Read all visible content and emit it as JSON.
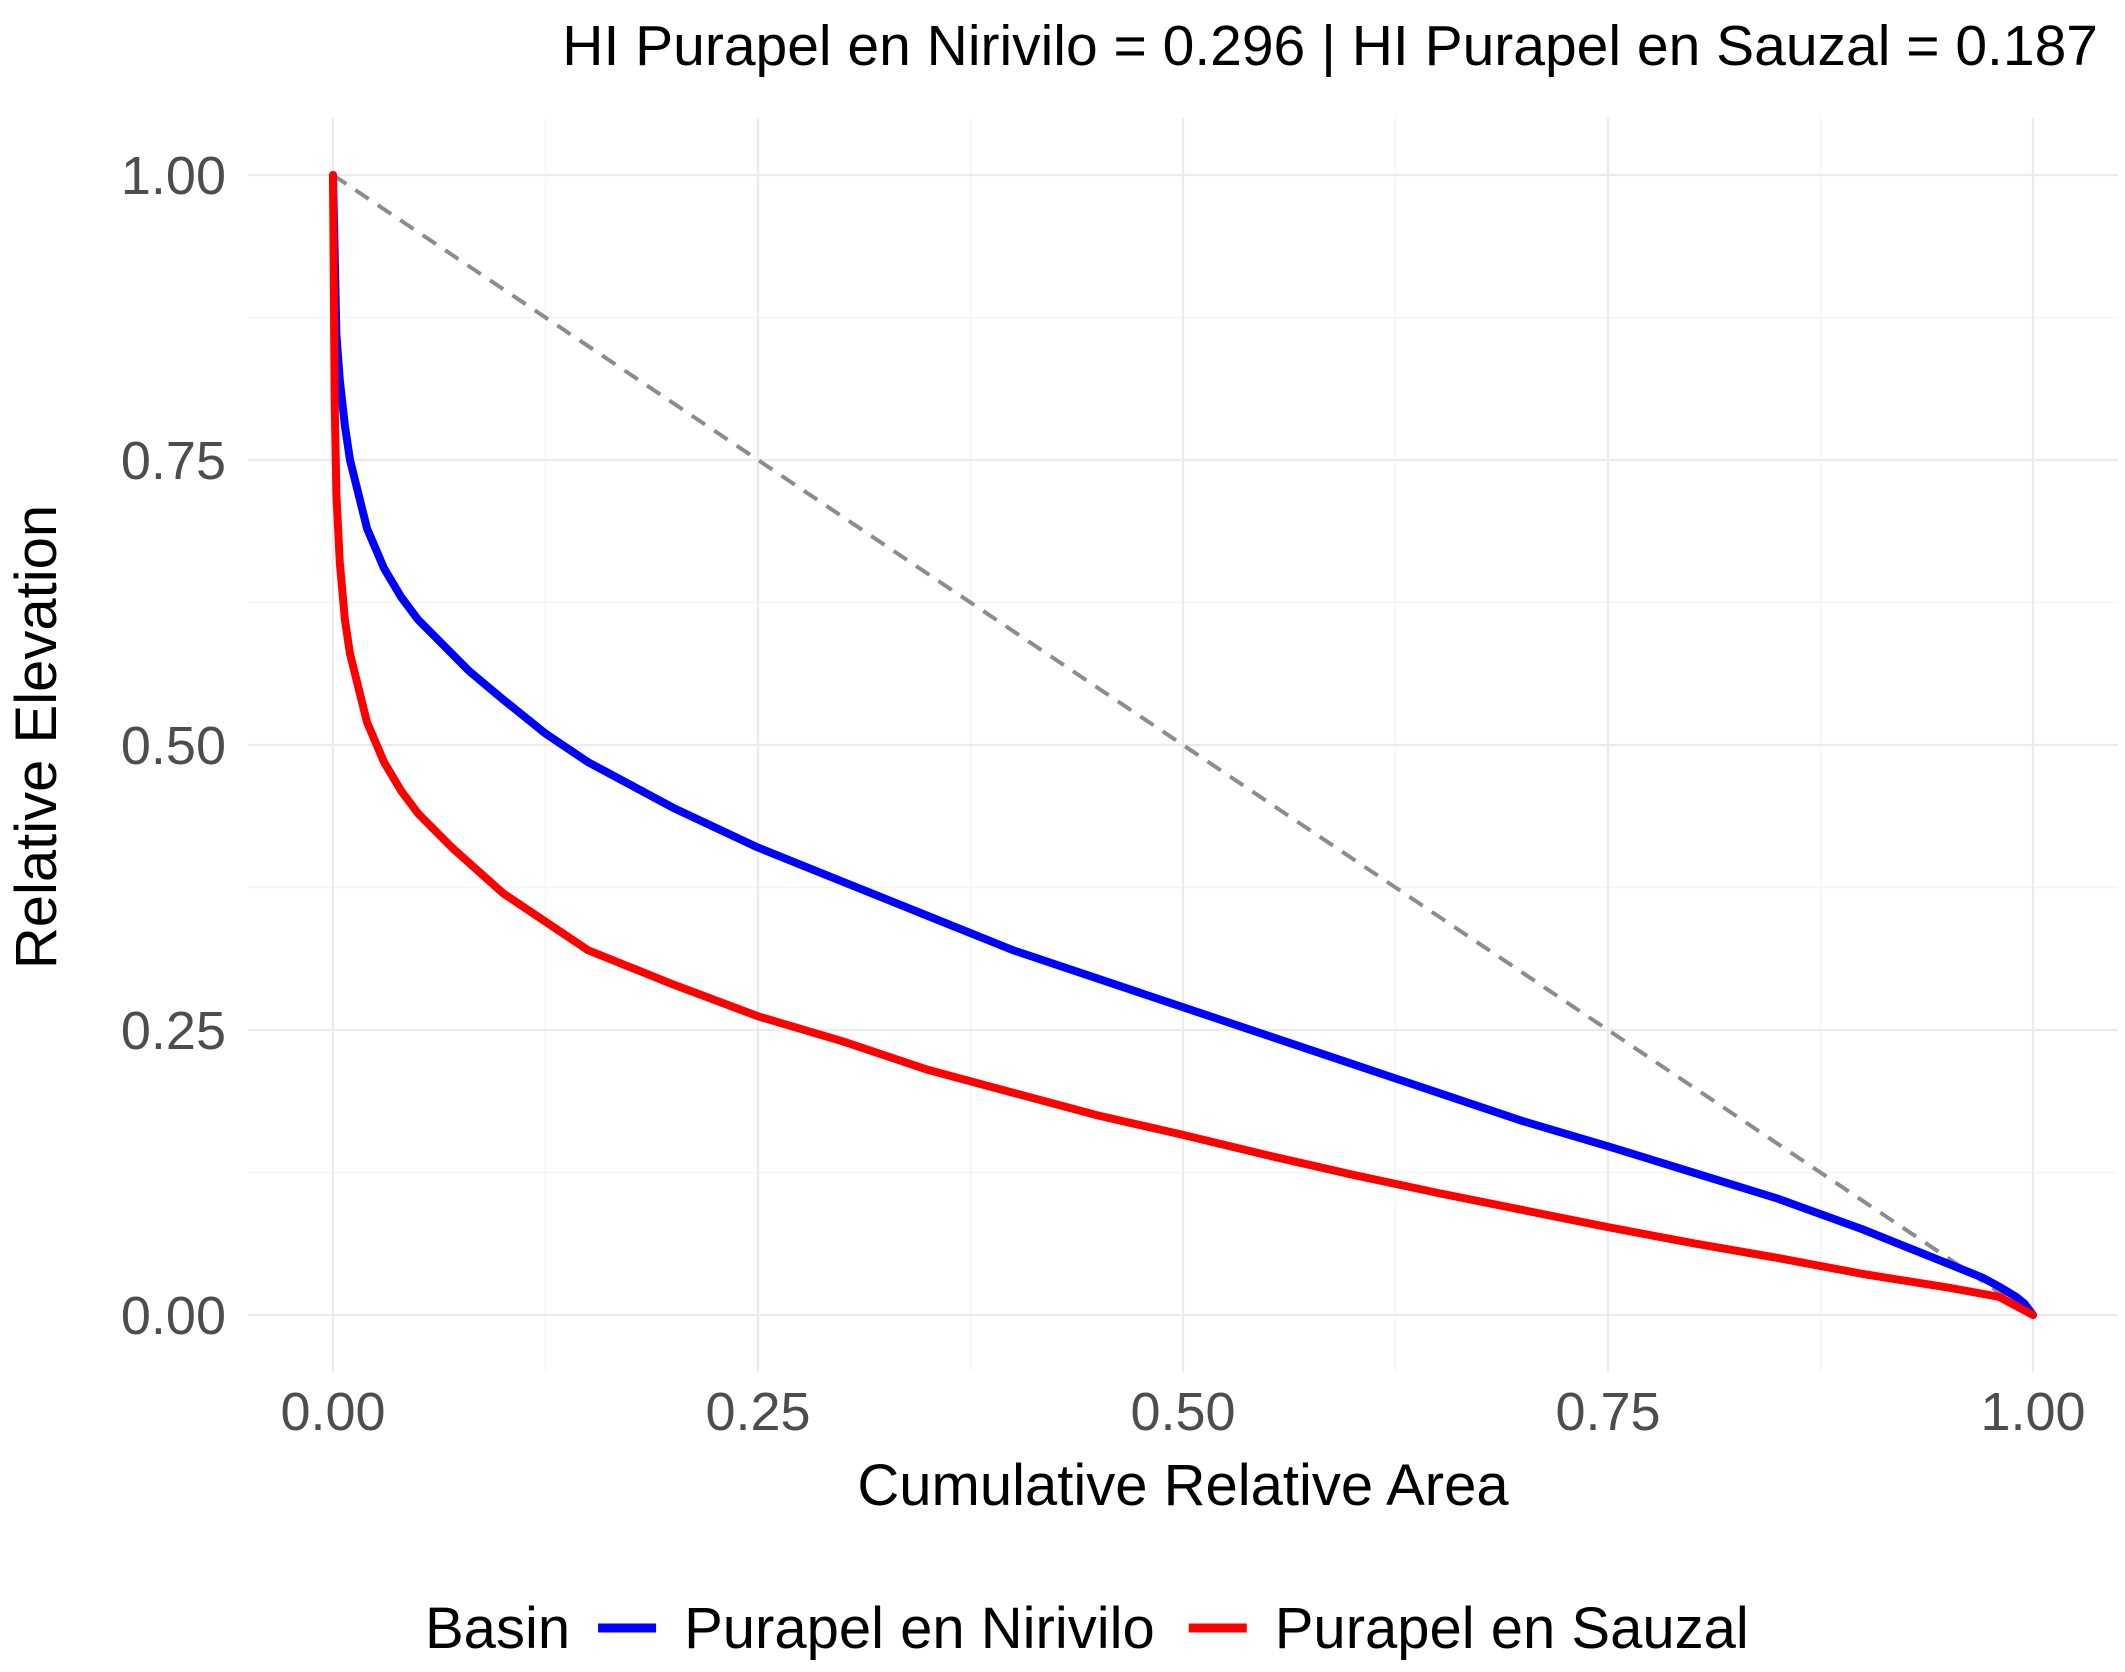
{
  "chart_data": {
    "type": "line",
    "title": "HI Purapel en Nirivilo = 0.296 | HI Purapel en Sauzal = 0.187",
    "xlabel": "Cumulative Relative Area",
    "ylabel": "Relative Elevation",
    "xlim": [
      -0.05,
      1.05
    ],
    "ylim": [
      -0.05,
      1.05
    ],
    "x_ticks": [
      0.0,
      0.25,
      0.5,
      0.75,
      1.0
    ],
    "x_tick_labels": [
      "0.00",
      "0.25",
      "0.50",
      "0.75",
      "1.00"
    ],
    "y_ticks": [
      0.0,
      0.25,
      0.5,
      0.75,
      1.0
    ],
    "y_tick_labels": [
      "0.00",
      "0.25",
      "0.50",
      "0.75",
      "1.00"
    ],
    "grid": true,
    "legend": {
      "position": "bottom",
      "title": "Basin"
    },
    "reference_line": {
      "style": "dashed",
      "color": "#8c8c8c",
      "x": [
        0.0,
        1.0
      ],
      "y": [
        1.0,
        0.0
      ]
    },
    "series": [
      {
        "name": "Purapel en Nirivilo",
        "color": "#0000ff",
        "x": [
          0.0,
          0.002,
          0.004,
          0.007,
          0.01,
          0.015,
          0.02,
          0.03,
          0.04,
          0.05,
          0.06,
          0.08,
          0.1,
          0.125,
          0.15,
          0.2,
          0.25,
          0.3,
          0.35,
          0.4,
          0.45,
          0.5,
          0.55,
          0.6,
          0.65,
          0.7,
          0.75,
          0.8,
          0.85,
          0.9,
          0.93,
          0.95,
          0.97,
          0.98,
          0.99,
          0.995,
          1.0
        ],
        "y": [
          1.0,
          0.86,
          0.82,
          0.78,
          0.75,
          0.72,
          0.69,
          0.655,
          0.63,
          0.61,
          0.595,
          0.565,
          0.54,
          0.51,
          0.485,
          0.445,
          0.41,
          0.38,
          0.35,
          0.32,
          0.295,
          0.27,
          0.245,
          0.22,
          0.195,
          0.17,
          0.148,
          0.125,
          0.102,
          0.075,
          0.057,
          0.045,
          0.033,
          0.025,
          0.016,
          0.01,
          0.0
        ]
      },
      {
        "name": "Purapel en Sauzal",
        "color": "#ff0000",
        "x": [
          0.0,
          0.001,
          0.002,
          0.004,
          0.007,
          0.01,
          0.015,
          0.02,
          0.03,
          0.04,
          0.05,
          0.07,
          0.1,
          0.125,
          0.15,
          0.2,
          0.25,
          0.3,
          0.35,
          0.4,
          0.45,
          0.5,
          0.55,
          0.6,
          0.65,
          0.7,
          0.75,
          0.8,
          0.85,
          0.9,
          0.95,
          0.98,
          1.0
        ],
        "y": [
          1.0,
          0.8,
          0.72,
          0.66,
          0.61,
          0.58,
          0.55,
          0.52,
          0.485,
          0.46,
          0.44,
          0.41,
          0.37,
          0.345,
          0.32,
          0.29,
          0.262,
          0.24,
          0.215,
          0.195,
          0.175,
          0.158,
          0.14,
          0.123,
          0.107,
          0.092,
          0.077,
          0.063,
          0.05,
          0.036,
          0.024,
          0.016,
          0.0
        ]
      }
    ]
  }
}
